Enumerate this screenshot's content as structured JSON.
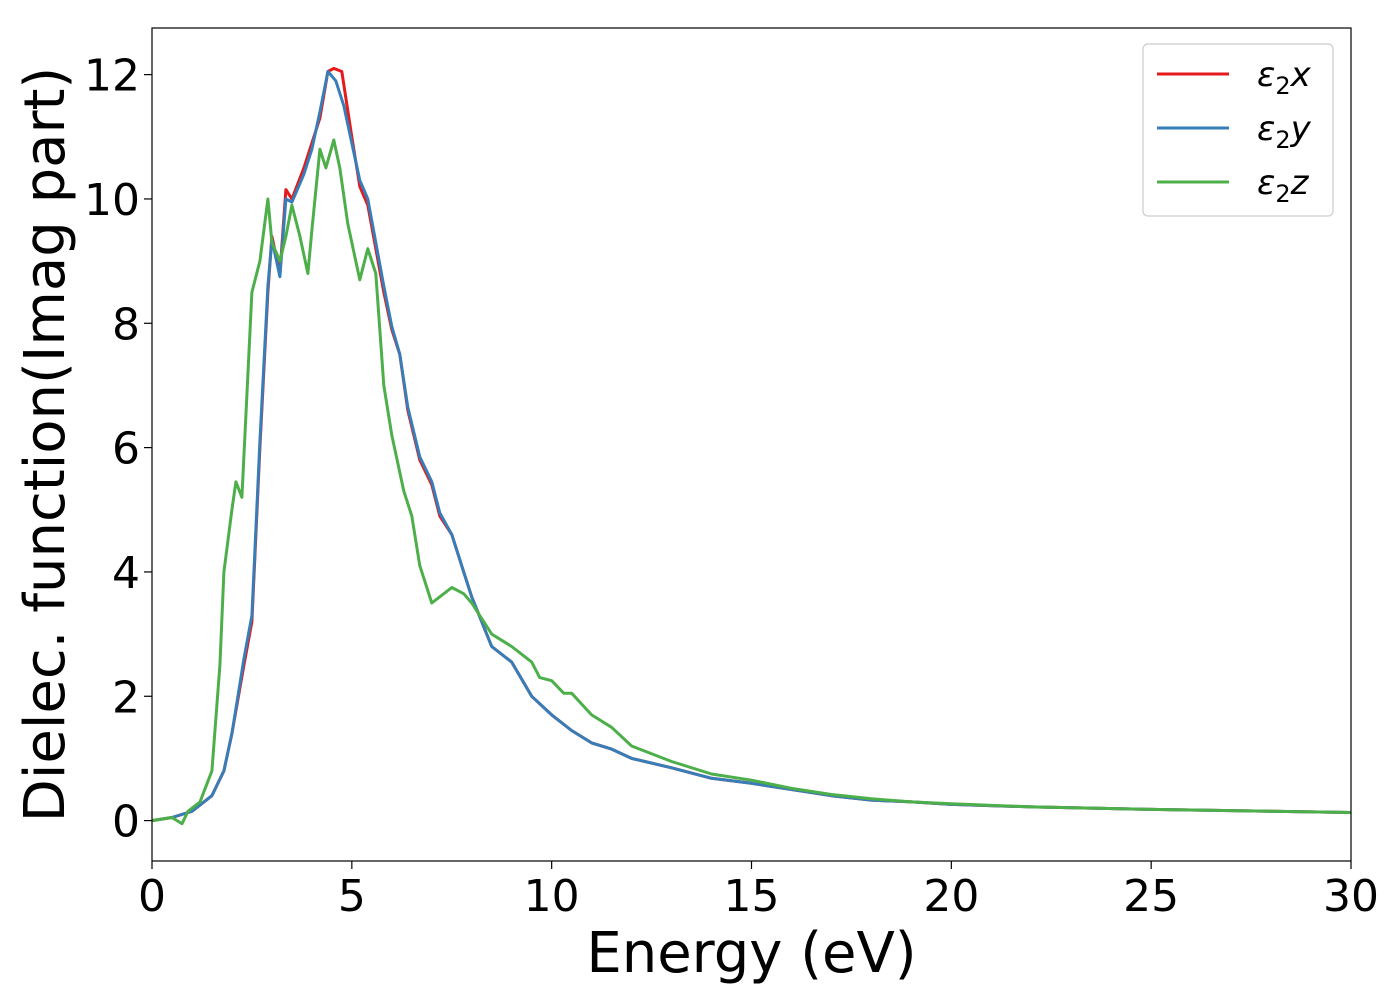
{
  "chart_data": {
    "type": "line",
    "xlabel": "Energy (eV)",
    "ylabel": "Dielec. function(Imag part)",
    "xlim": [
      0,
      30
    ],
    "ylim": [
      -0.65,
      12.75
    ],
    "xticks": [
      0,
      5,
      10,
      15,
      20,
      25,
      30
    ],
    "yticks": [
      0,
      2,
      4,
      6,
      8,
      10,
      12
    ],
    "xtick_labels": [
      "0",
      "5",
      "10",
      "15",
      "20",
      "25",
      "30"
    ],
    "ytick_labels": [
      "0",
      "2",
      "4",
      "6",
      "8",
      "10",
      "12"
    ],
    "grid": false,
    "legend_position": "top-right",
    "series": [
      {
        "name": "ε₂x",
        "label_parts": [
          "ε",
          "2",
          "x"
        ],
        "color": "#e41a1c",
        "points": [
          [
            0,
            0
          ],
          [
            0.5,
            0.05
          ],
          [
            1,
            0.15
          ],
          [
            1.5,
            0.4
          ],
          [
            1.8,
            0.8
          ],
          [
            2.0,
            1.4
          ],
          [
            2.3,
            2.5
          ],
          [
            2.5,
            3.2
          ],
          [
            2.7,
            6
          ],
          [
            2.9,
            8.5
          ],
          [
            3.0,
            9.4
          ],
          [
            3.2,
            8.8
          ],
          [
            3.35,
            10.15
          ],
          [
            3.5,
            10
          ],
          [
            3.8,
            10.5
          ],
          [
            4.0,
            10.9
          ],
          [
            4.2,
            11.3
          ],
          [
            4.4,
            12.05
          ],
          [
            4.55,
            12.1
          ],
          [
            4.75,
            12.05
          ],
          [
            5.0,
            11
          ],
          [
            5.2,
            10.2
          ],
          [
            5.4,
            9.9
          ],
          [
            5.6,
            9.2
          ],
          [
            5.8,
            8.5
          ],
          [
            6.0,
            7.9
          ],
          [
            6.2,
            7.5
          ],
          [
            6.4,
            6.6
          ],
          [
            6.7,
            5.8
          ],
          [
            7.0,
            5.4
          ],
          [
            7.2,
            4.9
          ],
          [
            7.5,
            4.6
          ],
          [
            7.8,
            4.0
          ],
          [
            8.0,
            3.6
          ],
          [
            8.5,
            2.8
          ],
          [
            9.0,
            2.55
          ],
          [
            9.5,
            2.0
          ],
          [
            10.0,
            1.7
          ],
          [
            10.5,
            1.45
          ],
          [
            11.0,
            1.25
          ],
          [
            11.5,
            1.15
          ],
          [
            12.0,
            1.0
          ],
          [
            13.0,
            0.85
          ],
          [
            14.0,
            0.68
          ],
          [
            15.0,
            0.6
          ],
          [
            16.0,
            0.5
          ],
          [
            17.0,
            0.4
          ],
          [
            18.0,
            0.33
          ],
          [
            19.0,
            0.3
          ],
          [
            20.0,
            0.26
          ],
          [
            22.0,
            0.22
          ],
          [
            25.0,
            0.18
          ],
          [
            28.0,
            0.15
          ],
          [
            30.0,
            0.13
          ]
        ]
      },
      {
        "name": "ε₂y",
        "label_parts": [
          "ε",
          "2",
          "y"
        ],
        "color": "#377eb8",
        "points": [
          [
            0,
            0
          ],
          [
            0.5,
            0.05
          ],
          [
            1,
            0.15
          ],
          [
            1.5,
            0.4
          ],
          [
            1.8,
            0.8
          ],
          [
            2.0,
            1.4
          ],
          [
            2.3,
            2.6
          ],
          [
            2.5,
            3.3
          ],
          [
            2.7,
            6.1
          ],
          [
            2.9,
            8.6
          ],
          [
            3.0,
            9.35
          ],
          [
            3.2,
            8.75
          ],
          [
            3.35,
            10.0
          ],
          [
            3.5,
            9.95
          ],
          [
            3.8,
            10.4
          ],
          [
            4.0,
            10.8
          ],
          [
            4.2,
            11.4
          ],
          [
            4.4,
            12.05
          ],
          [
            4.6,
            11.9
          ],
          [
            4.8,
            11.5
          ],
          [
            5.0,
            10.9
          ],
          [
            5.2,
            10.3
          ],
          [
            5.4,
            10.0
          ],
          [
            5.6,
            9.3
          ],
          [
            5.8,
            8.6
          ],
          [
            6.0,
            7.95
          ],
          [
            6.2,
            7.5
          ],
          [
            6.4,
            6.65
          ],
          [
            6.7,
            5.85
          ],
          [
            7.0,
            5.45
          ],
          [
            7.2,
            4.95
          ],
          [
            7.5,
            4.6
          ],
          [
            7.8,
            4.0
          ],
          [
            8.0,
            3.6
          ],
          [
            8.5,
            2.8
          ],
          [
            9.0,
            2.55
          ],
          [
            9.5,
            2.0
          ],
          [
            10.0,
            1.7
          ],
          [
            10.5,
            1.45
          ],
          [
            11.0,
            1.25
          ],
          [
            11.5,
            1.15
          ],
          [
            12.0,
            1.0
          ],
          [
            13.0,
            0.85
          ],
          [
            14.0,
            0.68
          ],
          [
            15.0,
            0.6
          ],
          [
            16.0,
            0.5
          ],
          [
            17.0,
            0.4
          ],
          [
            18.0,
            0.33
          ],
          [
            19.0,
            0.3
          ],
          [
            20.0,
            0.26
          ],
          [
            22.0,
            0.22
          ],
          [
            25.0,
            0.18
          ],
          [
            28.0,
            0.15
          ],
          [
            30.0,
            0.13
          ]
        ]
      },
      {
        "name": "ε₂z",
        "label_parts": [
          "ε",
          "2",
          "z"
        ],
        "color": "#4daf4a",
        "points": [
          [
            0,
            0
          ],
          [
            0.5,
            0.05
          ],
          [
            0.75,
            -0.05
          ],
          [
            0.9,
            0.15
          ],
          [
            1.2,
            0.3
          ],
          [
            1.5,
            0.8
          ],
          [
            1.7,
            2.5
          ],
          [
            1.8,
            4.0
          ],
          [
            2.0,
            5.0
          ],
          [
            2.1,
            5.45
          ],
          [
            2.25,
            5.2
          ],
          [
            2.5,
            8.5
          ],
          [
            2.7,
            9.0
          ],
          [
            2.9,
            10.0
          ],
          [
            3.0,
            9.3
          ],
          [
            3.2,
            9.0
          ],
          [
            3.35,
            9.4
          ],
          [
            3.5,
            9.9
          ],
          [
            3.7,
            9.4
          ],
          [
            3.9,
            8.8
          ],
          [
            4.0,
            9.5
          ],
          [
            4.2,
            10.8
          ],
          [
            4.35,
            10.5
          ],
          [
            4.55,
            10.95
          ],
          [
            4.7,
            10.5
          ],
          [
            4.9,
            9.6
          ],
          [
            5.0,
            9.3
          ],
          [
            5.2,
            8.7
          ],
          [
            5.4,
            9.2
          ],
          [
            5.6,
            8.8
          ],
          [
            5.8,
            7.0
          ],
          [
            6.0,
            6.2
          ],
          [
            6.3,
            5.3
          ],
          [
            6.5,
            4.9
          ],
          [
            6.7,
            4.1
          ],
          [
            7.0,
            3.5
          ],
          [
            7.2,
            3.6
          ],
          [
            7.5,
            3.75
          ],
          [
            7.8,
            3.65
          ],
          [
            8.0,
            3.5
          ],
          [
            8.5,
            3.0
          ],
          [
            9.0,
            2.8
          ],
          [
            9.5,
            2.55
          ],
          [
            9.7,
            2.3
          ],
          [
            10.0,
            2.25
          ],
          [
            10.3,
            2.05
          ],
          [
            10.5,
            2.05
          ],
          [
            11.0,
            1.7
          ],
          [
            11.5,
            1.5
          ],
          [
            12.0,
            1.2
          ],
          [
            13.0,
            0.95
          ],
          [
            14.0,
            0.75
          ],
          [
            15.0,
            0.65
          ],
          [
            16.0,
            0.52
          ],
          [
            17.0,
            0.42
          ],
          [
            18.0,
            0.35
          ],
          [
            19.0,
            0.3
          ],
          [
            20.0,
            0.27
          ],
          [
            22.0,
            0.22
          ],
          [
            25.0,
            0.18
          ],
          [
            28.0,
            0.15
          ],
          [
            30.0,
            0.13
          ]
        ]
      }
    ]
  }
}
